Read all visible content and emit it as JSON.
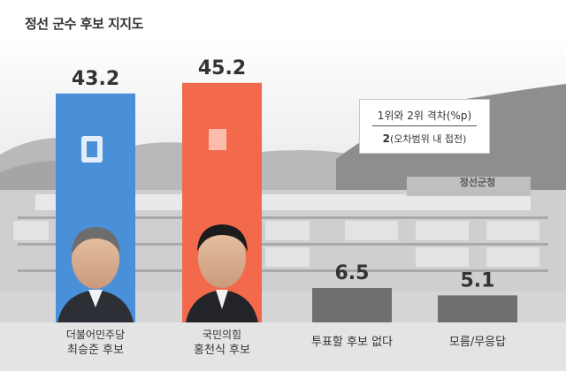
{
  "title": "정선 군수 후보 지지도",
  "colors": {
    "democratic": "#4a90d9",
    "ppp": "#f26a4b",
    "other": "#6f6f6f",
    "background_bottom": "#e4e4e4"
  },
  "gap_box": {
    "label": "1위와 2위 격차(%p)",
    "value": "2",
    "note": "(오차범위 내 접전)"
  },
  "background_sign": "정선군청",
  "chart_data": {
    "type": "bar",
    "title": "정선 군수 후보 지지도",
    "categories": [
      "더불어민주당 최승준 후보",
      "국민의힘 홍천식 후보",
      "투표할 후보 없다",
      "모름/무응답"
    ],
    "values": [
      43.2,
      45.2,
      6.5,
      5.1
    ],
    "data_labels": [
      "43.2",
      "45.2",
      "6.5",
      "5.1"
    ],
    "ylim": [
      0,
      50
    ],
    "grid": false,
    "legend": "none",
    "bars": [
      {
        "party": "더불어민주당",
        "name": "최승준 후보",
        "label": "",
        "value": 43.2,
        "color": "#4a90d9"
      },
      {
        "party": "국민의힘",
        "name": "홍천식 후보",
        "label": "",
        "value": 45.2,
        "color": "#f26a4b"
      },
      {
        "party": "",
        "name": "",
        "label": "투표할 후보 없다",
        "value": 6.5,
        "color": "#6f6f6f"
      },
      {
        "party": "",
        "name": "",
        "label": "모름/무응답",
        "value": 5.1,
        "color": "#6f6f6f"
      }
    ]
  }
}
